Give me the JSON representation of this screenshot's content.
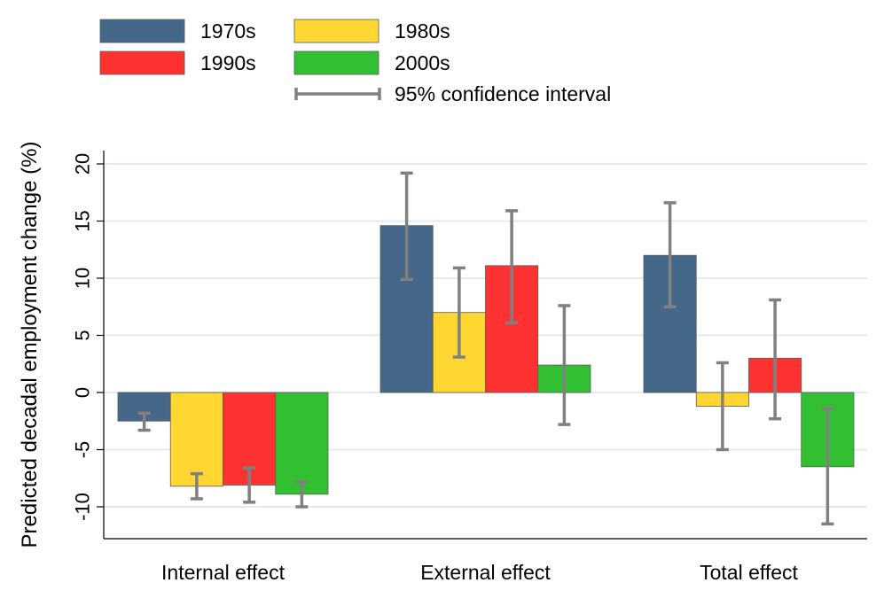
{
  "chart_data": {
    "type": "bar",
    "title": "",
    "xlabel": "",
    "ylabel": "Predicted decadal employment change (%)",
    "ylim": [
      -12.8,
      21
    ],
    "yticks": [
      -10,
      -5,
      0,
      5,
      10,
      15,
      20
    ],
    "ytick_labels": [
      "-10",
      "-5",
      "0",
      "5",
      "10",
      "15",
      "20"
    ],
    "grid": true,
    "legend_position": "top",
    "categories": [
      "Internal effect",
      "External effect",
      "Total effect"
    ],
    "series": [
      {
        "name": "1970s",
        "color": "#456789",
        "values": [
          -2.5,
          14.6,
          12.0
        ],
        "ci_low": [
          -3.3,
          9.9,
          7.5
        ],
        "ci_high": [
          -1.8,
          19.2,
          16.6
        ]
      },
      {
        "name": "1980s",
        "color": "#ffd632",
        "values": [
          -8.2,
          7.0,
          -1.2
        ],
        "ci_low": [
          -9.3,
          3.1,
          -5.0
        ],
        "ci_high": [
          -7.1,
          10.9,
          2.6
        ]
      },
      {
        "name": "1990s",
        "color": "#ff3232",
        "values": [
          -8.1,
          11.1,
          3.0
        ],
        "ci_low": [
          -9.6,
          6.1,
          -2.3
        ],
        "ci_high": [
          -6.6,
          15.9,
          8.1
        ]
      },
      {
        "name": "2000s",
        "color": "#32c032",
        "values": [
          -8.9,
          2.4,
          -6.5
        ],
        "ci_low": [
          -10.0,
          -2.8,
          -11.5
        ],
        "ci_high": [
          -7.8,
          7.6,
          -1.4
        ]
      }
    ],
    "ci_label": "95% confidence interval",
    "ci_color": "#808080"
  }
}
